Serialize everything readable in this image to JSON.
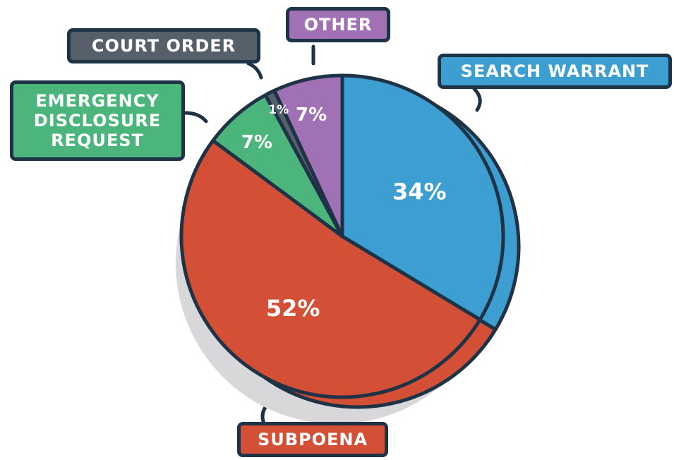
{
  "chart_data": {
    "type": "pie",
    "categories": [
      "SEARCH WARRANT",
      "SUBPOENA",
      "EMERGENCY DISCLOSURE REQUEST",
      "COURT ORDER",
      "OTHER"
    ],
    "values": [
      34,
      52,
      7,
      1,
      7
    ],
    "value_labels": [
      "34%",
      "52%",
      "7%",
      "1%",
      "7%"
    ],
    "colors": [
      "#3d9fd1",
      "#d34f36",
      "#4bb57b",
      "#56606a",
      "#a072b5"
    ]
  }
}
